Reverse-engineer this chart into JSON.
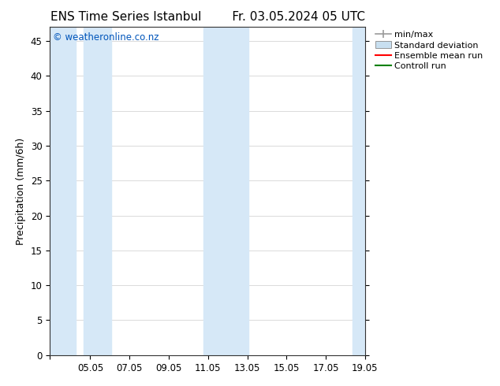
{
  "title_left": "ENS Time Series Istanbul",
  "title_right": "Fr. 03.05.2024 05 UTC",
  "ylabel": "Precipitation (mm/6h)",
  "watermark": "© weatheronline.co.nz",
  "watermark_color": "#0055bb",
  "x_start": 3.0,
  "x_end": 19.05,
  "x_ticks": [
    3.0,
    5.05,
    7.05,
    9.05,
    11.05,
    13.05,
    15.05,
    17.05,
    19.05
  ],
  "x_tick_labels": [
    "",
    "05.05",
    "07.05",
    "09.05",
    "11.05",
    "13.05",
    "15.05",
    "17.05",
    "19.05"
  ],
  "ylim": [
    0,
    47
  ],
  "y_ticks": [
    0,
    5,
    10,
    15,
    20,
    25,
    30,
    35,
    40,
    45
  ],
  "bg_color": "#ffffff",
  "plot_bg_color": "#ffffff",
  "shaded_band_color": "#d6e8f7",
  "shaded_columns": [
    [
      3.0,
      4.3
    ],
    [
      4.7,
      6.1
    ],
    [
      10.8,
      13.1
    ],
    [
      18.4,
      19.05
    ]
  ],
  "legend_entries": [
    {
      "label": "min/max",
      "color": "#aaaaaa",
      "style": "minmax"
    },
    {
      "label": "Standard deviation",
      "color": "#c8dff0",
      "style": "fill"
    },
    {
      "label": "Ensemble mean run",
      "color": "#ff0000",
      "style": "line"
    },
    {
      "label": "Controll run",
      "color": "#008000",
      "style": "line"
    }
  ],
  "title_fontsize": 11,
  "axis_label_fontsize": 9,
  "tick_fontsize": 8.5,
  "legend_fontsize": 8
}
